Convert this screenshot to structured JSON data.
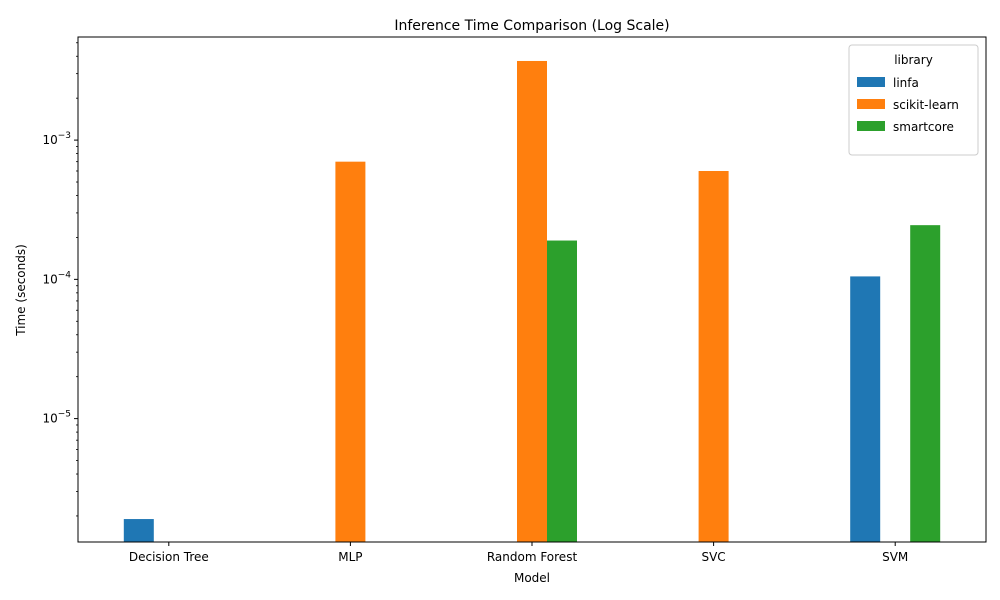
{
  "chart_data": {
    "type": "bar",
    "title": "Inference Time Comparison (Log Scale)",
    "xlabel": "Model",
    "ylabel": "Time (seconds)",
    "yscale": "log",
    "ylim": [
      1.3e-06,
      0.0055
    ],
    "categories": [
      "Decision Tree",
      "MLP",
      "Random Forest",
      "SVC",
      "SVM"
    ],
    "series": [
      {
        "name": "linfa",
        "color": "#1f77b4",
        "values": [
          1.9e-06,
          null,
          null,
          null,
          0.000105
        ]
      },
      {
        "name": "scikit-learn",
        "color": "#ff7f0e",
        "values": [
          null,
          0.0007,
          0.0037,
          0.0006,
          null
        ]
      },
      {
        "name": "smartcore",
        "color": "#2ca02c",
        "values": [
          null,
          null,
          0.00019,
          null,
          0.000245
        ]
      }
    ],
    "yticks": [
      {
        "value": 1e-05,
        "base": "10",
        "exp": "−5"
      },
      {
        "value": 0.0001,
        "base": "10",
        "exp": "−4"
      },
      {
        "value": 0.001,
        "base": "10",
        "exp": "−3"
      }
    ],
    "legend": {
      "title": "library",
      "position": "upper right"
    },
    "grid": false
  }
}
